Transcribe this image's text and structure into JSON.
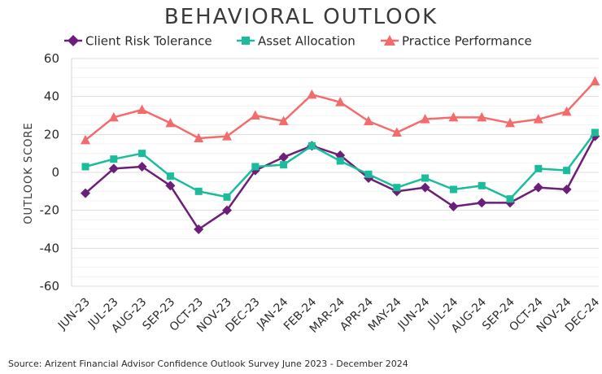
{
  "chart_data": {
    "type": "line",
    "title": "BEHAVIORAL OUTLOOK",
    "xlabel": "",
    "ylabel": "OUTLOOK SCORE",
    "ylim": [
      -60,
      60
    ],
    "yticks": [
      60,
      40,
      20,
      0,
      -20,
      -40,
      -60
    ],
    "grid": "horizontal",
    "legend": "top",
    "categories": [
      "JUN-23",
      "JUL-23",
      "AUG-23",
      "SEP-23",
      "OCT-23",
      "NOV-23",
      "DEC-23",
      "JAN-24",
      "FEB-24",
      "MAR-24",
      "APR-24",
      "MAY-24",
      "JUN-24",
      "JUL-24",
      "AUG-24",
      "SEP-24",
      "OCT-24",
      "NOV-24",
      "DEC-24"
    ],
    "series": [
      {
        "name": "Client Risk Tolerance",
        "color": "#6b1e7a",
        "marker": "diamond",
        "values": [
          -11,
          2,
          3,
          -7,
          -30,
          -20,
          1,
          8,
          14,
          9,
          -3,
          -10,
          -8,
          -18,
          -16,
          -16,
          -8,
          -9,
          19
        ]
      },
      {
        "name": "Asset Allocation",
        "color": "#1bbc9b",
        "marker": "square",
        "values": [
          3,
          7,
          10,
          -2,
          -10,
          -13,
          3,
          4,
          14,
          6,
          -1,
          -8,
          -3,
          -9,
          -7,
          -14,
          2,
          1,
          21
        ]
      },
      {
        "name": "Practice Performance",
        "color": "#f46b6b",
        "marker": "triangle",
        "values": [
          17,
          29,
          33,
          26,
          18,
          19,
          30,
          27,
          41,
          37,
          27,
          21,
          28,
          29,
          29,
          26,
          28,
          32,
          48
        ]
      }
    ],
    "source": "Source: Arizent Financial Advisor Confidence Outlook Survey June 2023 - December 2024"
  }
}
